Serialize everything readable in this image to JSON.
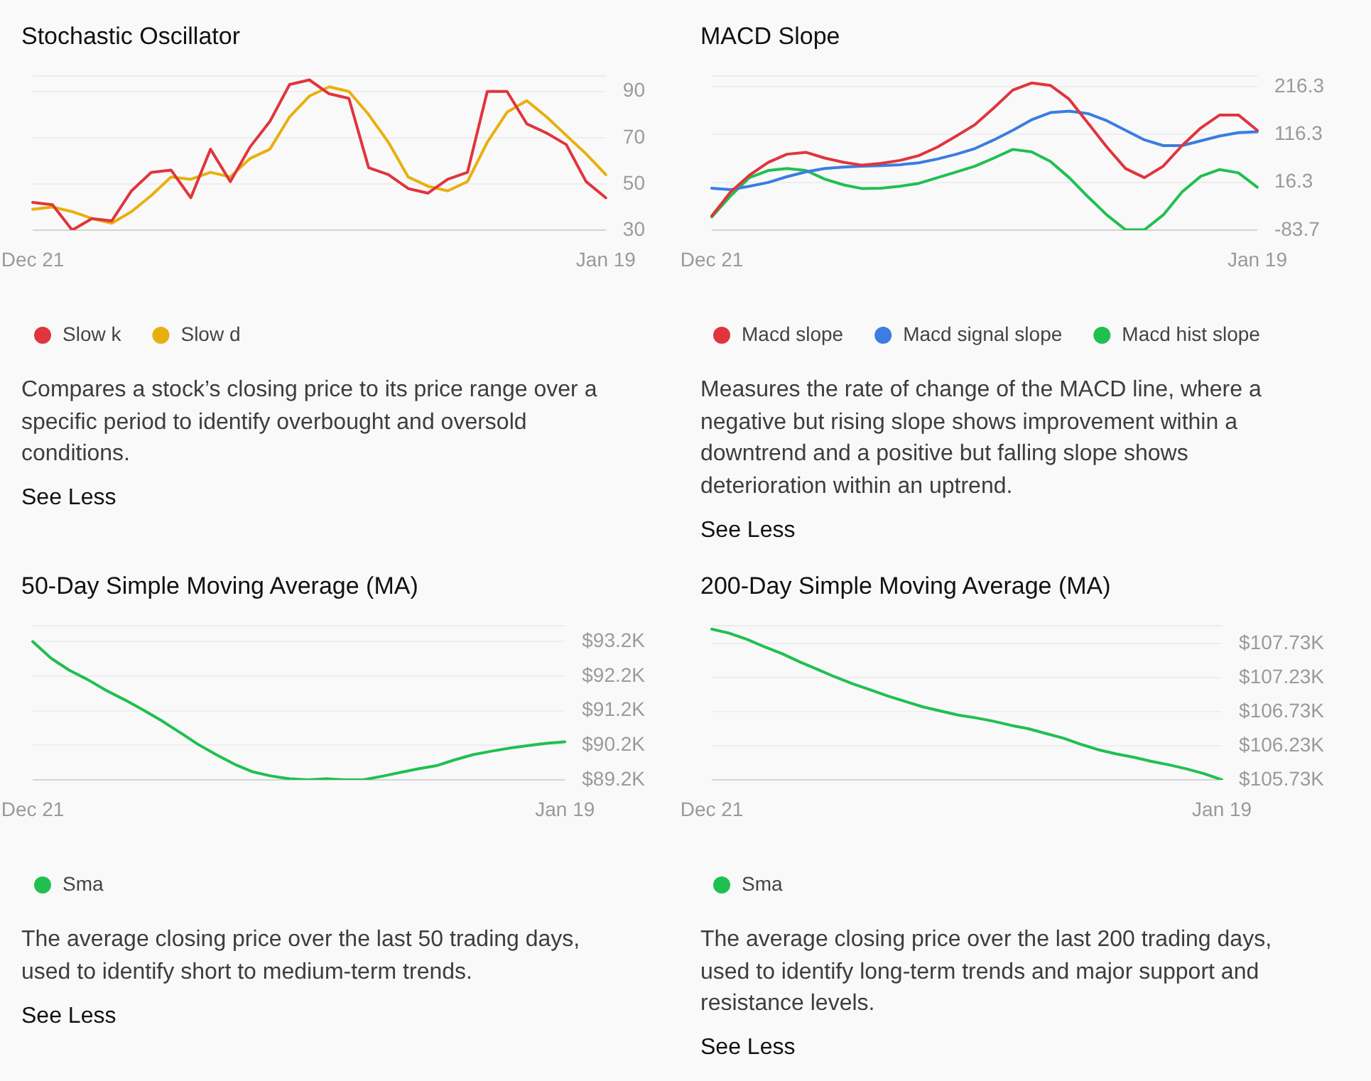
{
  "chart_data": [
    {
      "type": "line",
      "title": "Stochastic Oscillator",
      "categories": [
        "Dec 21",
        null,
        null,
        null,
        null,
        null,
        null,
        null,
        null,
        null,
        null,
        null,
        null,
        null,
        null,
        null,
        null,
        null,
        null,
        null,
        null,
        null,
        null,
        null,
        null,
        null,
        null,
        null,
        null,
        "Jan 19"
      ],
      "series": [
        {
          "name": "Slow k",
          "color": "#e0353d",
          "values": [
            42,
            41,
            30,
            35,
            34,
            47,
            55,
            56,
            44,
            65,
            51,
            66,
            77,
            93,
            95,
            89,
            87,
            57,
            54,
            48,
            46,
            52,
            55,
            90,
            90,
            76,
            72,
            67,
            51,
            44
          ]
        },
        {
          "name": "Slow d",
          "color": "#e8b00e",
          "values": [
            39,
            40,
            38,
            35,
            33,
            38,
            45,
            53,
            52,
            55,
            53,
            61,
            65,
            79,
            88,
            92,
            90,
            80,
            68,
            53,
            49,
            47,
            51,
            68,
            81,
            86,
            79,
            71,
            63,
            54
          ]
        }
      ],
      "ylim": [
        30,
        97
      ],
      "yticks": [
        30,
        50,
        70,
        90
      ],
      "grid": "y",
      "legend": "bottom left",
      "marker": "none",
      "annotations": [
        "Compares a stock’s closing price to its price range over a specific period to identify overbought and oversold conditions.",
        "See Less"
      ]
    },
    {
      "type": "line",
      "title": "MACD Slope",
      "categories": [
        "Dec 21",
        null,
        null,
        null,
        null,
        null,
        null,
        null,
        null,
        null,
        null,
        null,
        null,
        null,
        null,
        null,
        null,
        null,
        null,
        null,
        null,
        null,
        null,
        null,
        null,
        null,
        null,
        null,
        null,
        "Jan 19"
      ],
      "series": [
        {
          "name": "Macd slope",
          "color": "#e0353d",
          "values": [
            -54,
            -4,
            31,
            58,
            75,
            79,
            67,
            58,
            52,
            56,
            62,
            72,
            90,
            113,
            137,
            172,
            209,
            224,
            219,
            190,
            140,
            90,
            45,
            26,
            50,
            93,
            130,
            157,
            157,
            125
          ]
        },
        {
          "name": "Macd signal slope",
          "color": "#3b7de0",
          "values": [
            4,
            1,
            8,
            16,
            28,
            38,
            45,
            48,
            50,
            51,
            53,
            57,
            65,
            75,
            87,
            105,
            125,
            147,
            162,
            165,
            160,
            145,
            125,
            105,
            93,
            93,
            103,
            113,
            120,
            122
          ]
        },
        {
          "name": "Macd hist slope",
          "color": "#20c050",
          "values": [
            -56,
            -12,
            26,
            41,
            45,
            41,
            23,
            11,
            3,
            4,
            8,
            14,
            26,
            38,
            50,
            67,
            85,
            80,
            60,
            26,
            -14,
            -52,
            -83,
            -83,
            -52,
            -4,
            29,
            43,
            36,
            6
          ]
        }
      ],
      "ylim": [
        -83.7,
        240
      ],
      "yticks": [
        -83.7,
        16.3,
        116.3,
        216.3
      ],
      "grid": "y",
      "legend": "bottom left",
      "marker": "none",
      "annotations": [
        "Measures the rate of change of the MACD line, where a negative but rising slope shows improvement within a downtrend and a positive but falling slope shows deterioration within an uptrend.",
        "See Less"
      ]
    },
    {
      "type": "line",
      "title": "50-Day Simple Moving Average (MA)",
      "categories": [
        "Dec 21",
        null,
        null,
        null,
        null,
        null,
        null,
        null,
        null,
        null,
        null,
        null,
        null,
        null,
        null,
        null,
        null,
        null,
        null,
        null,
        null,
        null,
        null,
        null,
        null,
        null,
        null,
        null,
        null,
        "Jan 19"
      ],
      "series": [
        {
          "name": "Sma",
          "color": "#20c050",
          "values": [
            93200,
            92720,
            92370,
            92100,
            91790,
            91520,
            91230,
            90920,
            90580,
            90230,
            89930,
            89650,
            89430,
            89310,
            89230,
            89200,
            89230,
            89200,
            89200,
            89300,
            89410,
            89520,
            89610,
            89780,
            89930,
            90030,
            90120,
            90190,
            90260,
            90300
          ]
        }
      ],
      "ylim": [
        89200,
        93680
      ],
      "yticks": [
        {
          "value": 89200,
          "label": "$89.2K"
        },
        {
          "value": 90200,
          "label": "$90.2K"
        },
        {
          "value": 91200,
          "label": "$91.2K"
        },
        {
          "value": 92200,
          "label": "$92.2K"
        },
        {
          "value": 93200,
          "label": "$93.2K"
        }
      ],
      "grid": "y",
      "legend": "bottom left",
      "marker": "none",
      "annotations": [
        "The average closing price over the last 50 trading days, used to identify short to medium-term trends.",
        "See Less"
      ]
    },
    {
      "type": "line",
      "title": "200-Day Simple Moving Average (MA)",
      "categories": [
        "Dec 21",
        null,
        null,
        null,
        null,
        null,
        null,
        null,
        null,
        null,
        null,
        null,
        null,
        null,
        null,
        null,
        null,
        null,
        null,
        null,
        null,
        null,
        null,
        null,
        null,
        null,
        null,
        null,
        null,
        "Jan 19"
      ],
      "series": [
        {
          "name": "Sma",
          "color": "#20c050",
          "values": [
            107940,
            107880,
            107790,
            107680,
            107580,
            107460,
            107350,
            107240,
            107140,
            107050,
            106960,
            106880,
            106800,
            106740,
            106680,
            106640,
            106590,
            106530,
            106480,
            106410,
            106340,
            106250,
            106170,
            106110,
            106060,
            106000,
            105950,
            105890,
            105820,
            105730
          ]
        }
      ],
      "ylim": [
        105730,
        108000
      ],
      "yticks": [
        {
          "value": 105730,
          "label": "$105.73K"
        },
        {
          "value": 106230,
          "label": "$106.23K"
        },
        {
          "value": 106730,
          "label": "$106.73K"
        },
        {
          "value": 107230,
          "label": "$107.23K"
        },
        {
          "value": 107730,
          "label": "$107.73K"
        }
      ],
      "grid": "y",
      "legend": "bottom left",
      "marker": "none",
      "annotations": [
        "The average closing price over the last 200 trading days, used to identify long-term trends and major support and resistance levels.",
        "See Less"
      ]
    }
  ]
}
